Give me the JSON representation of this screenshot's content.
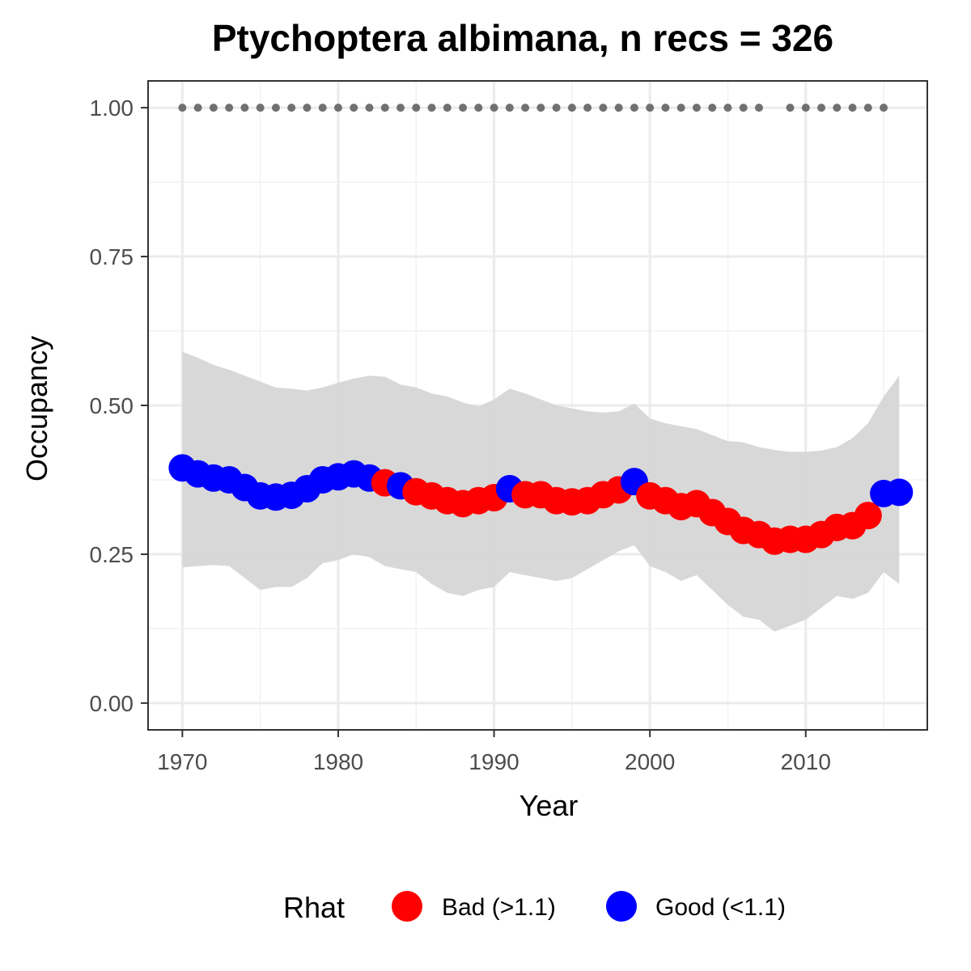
{
  "chart_data": {
    "type": "scatter",
    "title": "Ptychoptera albimana, n recs = 326",
    "xlabel": "Year",
    "ylabel": "Occupancy",
    "xlim": [
      1967.8,
      2017.8
    ],
    "ylim": [
      -0.045,
      1.045
    ],
    "x_ticks": [
      1970,
      1980,
      1990,
      2000,
      2010
    ],
    "x_tick_labels": [
      "1970",
      "1980",
      "1990",
      "2000",
      "2010"
    ],
    "y_ticks": [
      0,
      0.25,
      0.5,
      0.75,
      1.0
    ],
    "y_tick_labels": [
      "0.00",
      "0.25",
      "0.50",
      "0.75",
      "1.00"
    ],
    "grid": true,
    "legend": {
      "title": "Rhat",
      "position": "bottom",
      "entries": [
        {
          "key": "bad",
          "label": "Bad (>1.1)",
          "color": "#ff0000"
        },
        {
          "key": "good",
          "label": "Good (<1.1)",
          "color": "#0000ff"
        }
      ]
    },
    "band_color": "#d6d6d6",
    "dot_color": "#707070",
    "years": [
      1970,
      1971,
      1972,
      1973,
      1974,
      1975,
      1976,
      1977,
      1978,
      1979,
      1980,
      1981,
      1982,
      1983,
      1984,
      1985,
      1986,
      1987,
      1988,
      1989,
      1990,
      1991,
      1992,
      1993,
      1994,
      1995,
      1996,
      1997,
      1998,
      1999,
      2000,
      2001,
      2002,
      2003,
      2004,
      2005,
      2006,
      2007,
      2008,
      2009,
      2010,
      2011,
      2012,
      2013,
      2014,
      2015,
      2016
    ],
    "occupancy": [
      0.395,
      0.385,
      0.378,
      0.375,
      0.362,
      0.348,
      0.346,
      0.349,
      0.36,
      0.375,
      0.38,
      0.385,
      0.378,
      0.37,
      0.365,
      0.355,
      0.348,
      0.34,
      0.335,
      0.34,
      0.345,
      0.36,
      0.35,
      0.35,
      0.34,
      0.338,
      0.34,
      0.35,
      0.358,
      0.372,
      0.348,
      0.34,
      0.33,
      0.335,
      0.32,
      0.305,
      0.29,
      0.283,
      0.272,
      0.275,
      0.275,
      0.283,
      0.295,
      0.298,
      0.315,
      0.352,
      0.354
    ],
    "rhat": [
      "good",
      "good",
      "good",
      "good",
      "good",
      "good",
      "good",
      "good",
      "good",
      "good",
      "good",
      "good",
      "good",
      "bad",
      "good",
      "bad",
      "bad",
      "bad",
      "bad",
      "bad",
      "bad",
      "good",
      "bad",
      "bad",
      "bad",
      "bad",
      "bad",
      "bad",
      "bad",
      "good",
      "bad",
      "bad",
      "bad",
      "bad",
      "bad",
      "bad",
      "bad",
      "bad",
      "bad",
      "bad",
      "bad",
      "bad",
      "bad",
      "bad",
      "bad",
      "good",
      "good"
    ],
    "upper": [
      0.59,
      0.58,
      0.568,
      0.56,
      0.55,
      0.54,
      0.53,
      0.528,
      0.525,
      0.53,
      0.538,
      0.545,
      0.55,
      0.548,
      0.535,
      0.53,
      0.52,
      0.515,
      0.505,
      0.498,
      0.51,
      0.528,
      0.52,
      0.51,
      0.5,
      0.495,
      0.49,
      0.488,
      0.49,
      0.503,
      0.478,
      0.47,
      0.465,
      0.46,
      0.45,
      0.44,
      0.438,
      0.43,
      0.425,
      0.422,
      0.422,
      0.424,
      0.43,
      0.445,
      0.47,
      0.515,
      0.55
    ],
    "lower": [
      0.228,
      0.23,
      0.232,
      0.23,
      0.21,
      0.19,
      0.195,
      0.195,
      0.21,
      0.235,
      0.24,
      0.25,
      0.245,
      0.23,
      0.225,
      0.22,
      0.2,
      0.185,
      0.18,
      0.19,
      0.195,
      0.22,
      0.215,
      0.21,
      0.205,
      0.21,
      0.225,
      0.24,
      0.255,
      0.265,
      0.23,
      0.22,
      0.205,
      0.215,
      0.19,
      0.165,
      0.145,
      0.14,
      0.12,
      0.13,
      0.14,
      0.16,
      0.18,
      0.175,
      0.185,
      0.22,
      0.2
    ],
    "records_years": [
      1970,
      1971,
      1972,
      1973,
      1974,
      1975,
      1976,
      1977,
      1978,
      1979,
      1980,
      1981,
      1982,
      1983,
      1984,
      1985,
      1986,
      1987,
      1988,
      1989,
      1990,
      1991,
      1992,
      1993,
      1994,
      1995,
      1996,
      1997,
      1998,
      1999,
      2000,
      2001,
      2002,
      2003,
      2004,
      2005,
      2006,
      2007,
      2009,
      2010,
      2011,
      2012,
      2013,
      2014,
      2015
    ],
    "records_value": 1.0
  }
}
